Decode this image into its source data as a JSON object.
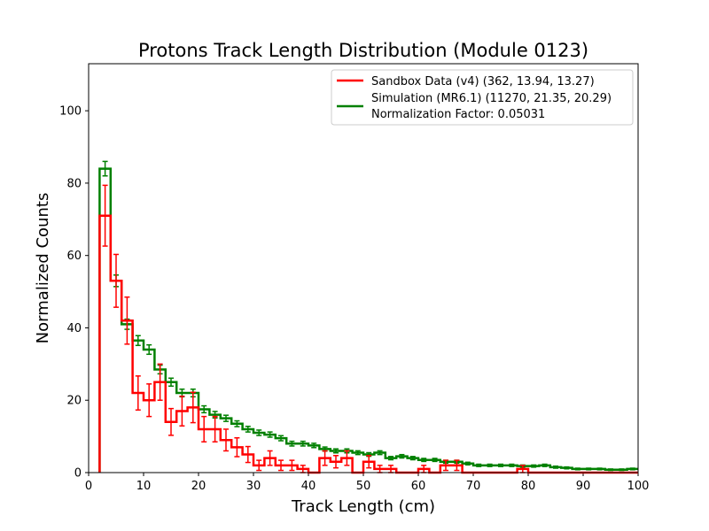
{
  "chart_data": {
    "type": "line",
    "title": "Protons Track Length Distribution (Module 0123)",
    "xlabel": "Track Length (cm)",
    "ylabel": "Normalized Counts",
    "xlim": [
      0,
      100
    ],
    "ylim": [
      0,
      113
    ],
    "xticks": [
      "0",
      "10",
      "20",
      "30",
      "40",
      "50",
      "60",
      "70",
      "80",
      "90",
      "100"
    ],
    "yticks": [
      "0",
      "20",
      "40",
      "60",
      "80",
      "100"
    ],
    "grid": false,
    "legend_position": "top-right",
    "bin_edges": [
      2,
      4,
      6,
      8,
      10,
      12,
      14,
      16,
      18,
      20,
      22,
      24,
      26,
      28,
      30,
      32,
      34,
      36,
      38,
      40,
      42,
      44,
      46,
      48,
      50,
      52,
      54,
      56,
      58,
      60,
      62,
      64,
      66,
      68,
      70,
      72,
      74,
      76,
      78,
      80,
      82,
      84,
      86,
      88,
      90,
      92,
      94,
      96,
      98,
      100
    ],
    "series": [
      {
        "name": "Sandbox Data (v4) (362, 13.94, 13.27)",
        "color": "#ff0000",
        "values": [
          71,
          53,
          42,
          22,
          20,
          25,
          14,
          17,
          18,
          12,
          12,
          9,
          7,
          5,
          2,
          4,
          2,
          2,
          1,
          0,
          4,
          3,
          4,
          0,
          3,
          1,
          1,
          0,
          0,
          1,
          0,
          2,
          2,
          0,
          0,
          0,
          0,
          0,
          1,
          0,
          0,
          0,
          0,
          0,
          0,
          0,
          0,
          0,
          0
        ],
        "errors": [
          8.4,
          7.3,
          6.5,
          4.7,
          4.5,
          5.0,
          3.7,
          4.1,
          4.2,
          3.5,
          3.5,
          3.0,
          2.6,
          2.2,
          1.4,
          2.0,
          1.4,
          1.4,
          1.0,
          0,
          2.0,
          1.7,
          2.0,
          0,
          1.7,
          1.0,
          1.0,
          0,
          0,
          1.0,
          0,
          1.4,
          1.4,
          0,
          0,
          0,
          0,
          0,
          1.0,
          0,
          0,
          0,
          0,
          0,
          0,
          0,
          0,
          0,
          0
        ]
      },
      {
        "name": "Simulation (MR6.1) (11270, 21.35, 20.29)",
        "color": "#008000",
        "values": [
          84,
          53,
          41,
          36.5,
          34,
          28.5,
          25,
          22,
          22,
          17.5,
          16,
          15,
          13.5,
          12,
          11,
          10.5,
          9.5,
          8,
          8,
          7.5,
          6.5,
          6,
          6,
          5.5,
          5,
          5.5,
          4,
          4.5,
          4,
          3.5,
          3.5,
          3,
          3,
          2.5,
          2,
          2,
          2,
          2,
          1.8,
          1.8,
          2,
          1.5,
          1.3,
          1,
          1,
          1,
          0.8,
          0.8,
          1
        ],
        "errors": [
          2.0,
          1.6,
          1.4,
          1.35,
          1.3,
          1.2,
          1.1,
          1.05,
          1.05,
          0.95,
          0.9,
          0.85,
          0.8,
          0.78,
          0.75,
          0.72,
          0.7,
          0.65,
          0.65,
          0.6,
          0.57,
          0.55,
          0.55,
          0.52,
          0.5,
          0.52,
          0.45,
          0.47,
          0.45,
          0.42,
          0.42,
          0.4,
          0.4,
          0.36,
          0.32,
          0.32,
          0.32,
          0.32,
          0.3,
          0.3,
          0.32,
          0.28,
          0.26,
          0.22,
          0.22,
          0.22,
          0.2,
          0.2,
          0.22
        ]
      }
    ],
    "legend_extra": "Normalization Factor: 0.05031"
  }
}
